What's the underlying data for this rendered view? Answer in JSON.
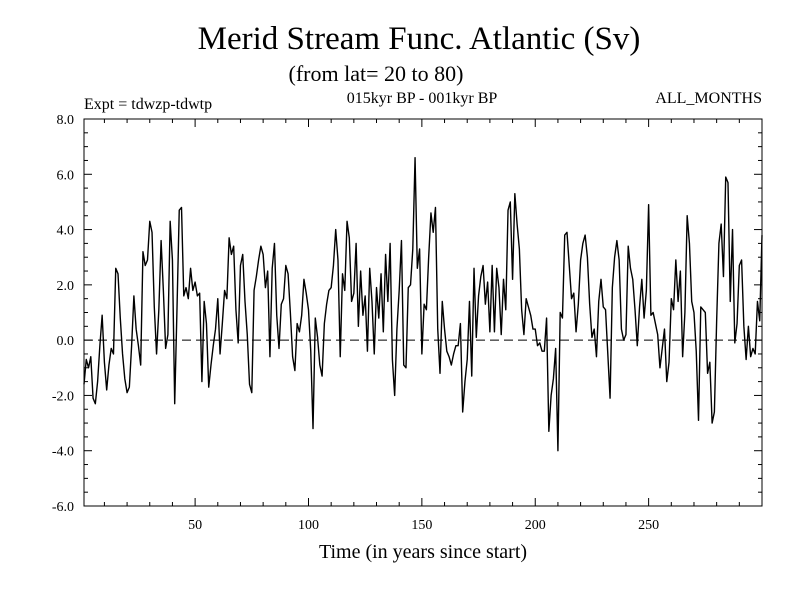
{
  "chart_data": {
    "type": "line",
    "title": "Merid Stream Func. Atlantic (Sv)",
    "subtitle": "(from lat= 20 to 80)",
    "experiment": "Expt = tdwzp-tdwtp",
    "period": "015kyr BP - 001kyr BP",
    "months": "ALL_MONTHS",
    "xlabel": "Time (in years since start)",
    "ylabel": "",
    "xlim": [
      1,
      300
    ],
    "ylim": [
      -6.0,
      8.0
    ],
    "x_ticks": [
      50,
      100,
      150,
      200,
      250
    ],
    "x_tick_labels": [
      "50",
      "100",
      "150",
      "200",
      "250"
    ],
    "y_ticks": [
      -6.0,
      -4.0,
      -2.0,
      0.0,
      2.0,
      4.0,
      6.0,
      8.0
    ],
    "y_tick_labels": [
      "-6.0",
      "-4.0",
      "-2.0",
      "0.0",
      "2.0",
      "4.0",
      "6.0",
      "8.0"
    ],
    "reference_line": 0.0,
    "x": [
      1,
      2,
      3,
      4,
      5,
      6,
      7,
      8,
      9,
      10,
      11,
      12,
      13,
      14,
      15,
      16,
      17,
      18,
      19,
      20,
      21,
      22,
      23,
      24,
      25,
      26,
      27,
      28,
      29,
      30,
      31,
      32,
      33,
      34,
      35,
      36,
      37,
      38,
      39,
      40,
      41,
      42,
      43,
      44,
      45,
      46,
      47,
      48,
      49,
      50,
      51,
      52,
      53,
      54,
      55,
      56,
      57,
      58,
      59,
      60,
      61,
      62,
      63,
      64,
      65,
      66,
      67,
      68,
      69,
      70,
      71,
      72,
      73,
      74,
      75,
      76,
      77,
      78,
      79,
      80,
      81,
      82,
      83,
      84,
      85,
      86,
      87,
      88,
      89,
      90,
      91,
      92,
      93,
      94,
      95,
      96,
      97,
      98,
      99,
      100,
      101,
      102,
      103,
      104,
      105,
      106,
      107,
      108,
      109,
      110,
      111,
      112,
      113,
      114,
      115,
      116,
      117,
      118,
      119,
      120,
      121,
      122,
      123,
      124,
      125,
      126,
      127,
      128,
      129,
      130,
      131,
      132,
      133,
      134,
      135,
      136,
      137,
      138,
      139,
      140,
      141,
      142,
      143,
      144,
      145,
      146,
      147,
      148,
      149,
      150,
      151,
      152,
      153,
      154,
      155,
      156,
      157,
      158,
      159,
      160,
      161,
      162,
      163,
      164,
      165,
      166,
      167,
      168,
      169,
      170,
      171,
      172,
      173,
      174,
      175,
      176,
      177,
      178,
      179,
      180,
      181,
      182,
      183,
      184,
      185,
      186,
      187,
      188,
      189,
      190,
      191,
      192,
      193,
      194,
      195,
      196,
      197,
      198,
      199,
      200,
      201,
      202,
      203,
      204,
      205,
      206,
      207,
      208,
      209,
      210,
      211,
      212,
      213,
      214,
      215,
      216,
      217,
      218,
      219,
      220,
      221,
      222,
      223,
      224,
      225,
      226,
      227,
      228,
      229,
      230,
      231,
      232,
      233,
      234,
      235,
      236,
      237,
      238,
      239,
      240,
      241,
      242,
      243,
      244,
      245,
      246,
      247,
      248,
      249,
      250,
      251,
      252,
      253,
      254,
      255,
      256,
      257,
      258,
      259,
      260,
      261,
      262,
      263,
      264,
      265,
      266,
      267,
      268,
      269,
      270,
      271,
      272,
      273,
      274,
      275,
      276,
      277,
      278,
      279,
      280,
      281,
      282,
      283,
      284,
      285,
      286,
      287,
      288,
      289,
      290,
      291,
      292,
      293,
      294,
      295,
      296,
      297,
      298,
      299,
      300
    ],
    "series": [
      {
        "name": "Merid Stream Func. Atlantic",
        "values": [
          -1.6,
          -0.7,
          -1.0,
          -0.6,
          -2.1,
          -2.3,
          -1.5,
          -0.2,
          0.9,
          -0.8,
          -1.8,
          -0.9,
          -0.3,
          -0.5,
          2.6,
          2.4,
          0.8,
          -0.5,
          -1.4,
          -1.9,
          -1.7,
          -0.2,
          1.6,
          0.4,
          -0.2,
          -0.9,
          3.2,
          2.7,
          2.9,
          4.3,
          3.9,
          1.2,
          -0.5,
          1.1,
          3.6,
          1.8,
          -0.3,
          0.2,
          4.3,
          2.9,
          -2.3,
          1.1,
          4.7,
          4.8,
          1.6,
          1.9,
          1.5,
          2.6,
          1.8,
          2.1,
          1.6,
          1.7,
          -1.5,
          1.4,
          0.6,
          -1.7,
          -0.9,
          -0.2,
          0.4,
          1.5,
          -0.5,
          0.6,
          1.8,
          1.5,
          3.7,
          3.1,
          3.4,
          1.1,
          -0.1,
          2.7,
          3.1,
          1.4,
          0.2,
          -1.6,
          -1.9,
          1.8,
          2.3,
          2.9,
          3.4,
          3.1,
          1.9,
          2.5,
          -0.6,
          2.6,
          3.5,
          0.9,
          -0.3,
          1.3,
          1.5,
          2.7,
          2.4,
          1.0,
          -0.6,
          -1.1,
          0.6,
          0.3,
          0.9,
          2.2,
          1.7,
          1.1,
          -0.4,
          -3.2,
          0.8,
          0.1,
          -0.9,
          -1.3,
          0.6,
          1.3,
          1.8,
          1.9,
          2.7,
          4.0,
          2.9,
          -0.6,
          2.4,
          1.8,
          4.3,
          3.7,
          1.4,
          1.7,
          3.5,
          0.5,
          2.5,
          0.9,
          1.6,
          -0.4,
          2.6,
          1.4,
          -0.5,
          1.9,
          0.8,
          2.4,
          0.3,
          3.1,
          1.4,
          3.5,
          -0.7,
          -2.0,
          0.4,
          1.8,
          3.6,
          -0.9,
          -1.0,
          1.9,
          2.0,
          3.3,
          6.6,
          2.6,
          3.3,
          -0.5,
          1.3,
          1.1,
          3.0,
          4.6,
          3.9,
          4.8,
          0.4,
          -1.2,
          1.4,
          0.4,
          -0.4,
          -0.6,
          -0.9,
          -0.5,
          -0.2,
          -0.2,
          0.6,
          -2.6,
          -1.5,
          -0.7,
          1.4,
          -1.3,
          2.6,
          0.1,
          1.6,
          2.3,
          2.7,
          1.3,
          2.1,
          0.3,
          2.7,
          0.3,
          2.6,
          1.9,
          0.2,
          2.2,
          1.1,
          4.7,
          5.0,
          2.2,
          5.3,
          4.2,
          3.3,
          1.1,
          0.2,
          1.5,
          1.2,
          0.9,
          0.4,
          0.4,
          -0.2,
          -0.1,
          -0.4,
          -0.4,
          0.8,
          -3.3,
          -2.0,
          -1.4,
          -0.3,
          -4.0,
          1.0,
          0.8,
          3.8,
          3.9,
          2.7,
          1.5,
          1.7,
          0.3,
          1.3,
          2.9,
          3.5,
          3.8,
          3.0,
          1.3,
          0.1,
          0.4,
          -0.6,
          1.4,
          2.2,
          1.2,
          1.1,
          -0.5,
          -2.1,
          1.9,
          3.0,
          3.6,
          2.9,
          0.4,
          0.0,
          0.2,
          3.4,
          2.6,
          2.2,
          1.1,
          -0.2,
          1.2,
          2.2,
          0.8,
          1.8,
          4.9,
          0.9,
          1.0,
          0.6,
          0.2,
          -1.0,
          -0.3,
          0.4,
          -1.5,
          -0.8,
          1.5,
          1.1,
          2.9,
          1.4,
          2.5,
          -0.6,
          1.0,
          4.5,
          3.5,
          1.4,
          1.0,
          -0.4,
          -2.9,
          1.2,
          1.1,
          1.0,
          -1.2,
          -0.8,
          -3.0,
          -2.6,
          0.7,
          3.5,
          4.2,
          2.3,
          5.9,
          5.7,
          1.4,
          4.0,
          -0.1,
          0.6,
          2.7,
          2.9,
          0.5,
          -0.7,
          0.5,
          -0.6,
          -0.3,
          -0.5,
          1.4,
          0.7,
          3.8
        ]
      }
    ]
  }
}
